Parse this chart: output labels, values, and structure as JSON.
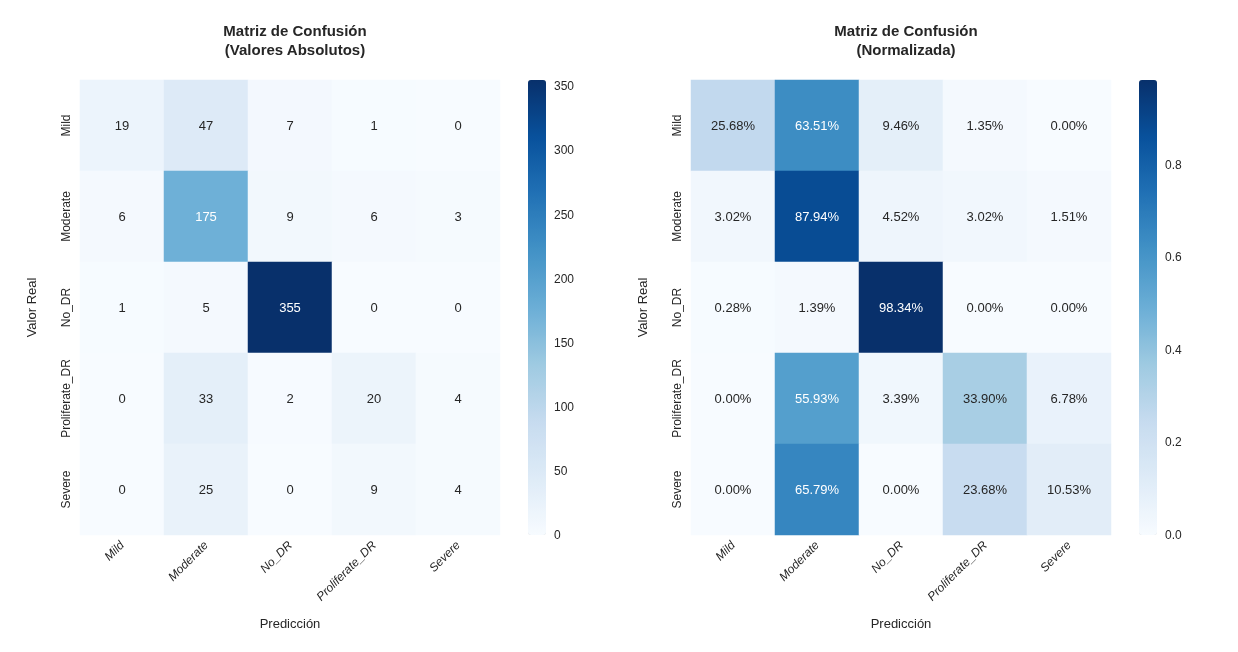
{
  "chart_data": [
    {
      "type": "heatmap",
      "title": "Matriz de Confusión\n(Valores Absolutos)",
      "xlabel": "Predicción",
      "ylabel": "Valor Real",
      "categories": [
        "Mild",
        "Moderate",
        "No_DR",
        "Proliferate_DR",
        "Severe"
      ],
      "y_categories": [
        "Mild",
        "Moderate",
        "No_DR",
        "Proliferate_DR",
        "Severe"
      ],
      "cells": [
        [
          19,
          47,
          7,
          1,
          0
        ],
        [
          6,
          175,
          9,
          6,
          3
        ],
        [
          1,
          5,
          355,
          0,
          0
        ],
        [
          0,
          33,
          2,
          20,
          4
        ],
        [
          0,
          25,
          0,
          9,
          4
        ]
      ],
      "data_labels": true,
      "clim": [
        0,
        355
      ],
      "cticks": [
        0,
        50,
        100,
        150,
        200,
        250,
        300,
        350
      ]
    },
    {
      "type": "heatmap",
      "title": "Matriz de Confusión\n(Normalizada)",
      "xlabel": "Predicción",
      "ylabel": "Valor Real",
      "categories": [
        "Mild",
        "Moderate",
        "No_DR",
        "Proliferate_DR",
        "Severe"
      ],
      "y_categories": [
        "Mild",
        "Moderate",
        "No_DR",
        "Proliferate_DR",
        "Severe"
      ],
      "cells": [
        [
          0.2568,
          0.6351,
          0.0946,
          0.0135,
          0.0
        ],
        [
          0.0302,
          0.8794,
          0.0452,
          0.0302,
          0.0151
        ],
        [
          0.0028,
          0.0139,
          0.9834,
          0.0,
          0.0
        ],
        [
          0.0,
          0.5593,
          0.0339,
          0.339,
          0.0678
        ],
        [
          0.0,
          0.6579,
          0.0,
          0.2368,
          0.1053
        ]
      ],
      "cell_labels": [
        [
          "25.68%",
          "63.51%",
          "9.46%",
          "1.35%",
          "0.00%"
        ],
        [
          "3.02%",
          "87.94%",
          "4.52%",
          "3.02%",
          "1.51%"
        ],
        [
          "0.28%",
          "1.39%",
          "98.34%",
          "0.00%",
          "0.00%"
        ],
        [
          "0.00%",
          "55.93%",
          "3.39%",
          "33.90%",
          "6.78%"
        ],
        [
          "0.00%",
          "65.79%",
          "0.00%",
          "23.68%",
          "10.53%"
        ]
      ],
      "clim": [
        0,
        0.9834
      ],
      "cticks": [
        {
          "value": 0,
          "label": "0.0"
        },
        {
          "value": 0.2,
          "label": "0.2"
        },
        {
          "value": 0.4,
          "label": "0.4"
        },
        {
          "value": 0.6,
          "label": "0.6"
        },
        {
          "value": 0.8,
          "label": "0.8"
        }
      ]
    }
  ]
}
